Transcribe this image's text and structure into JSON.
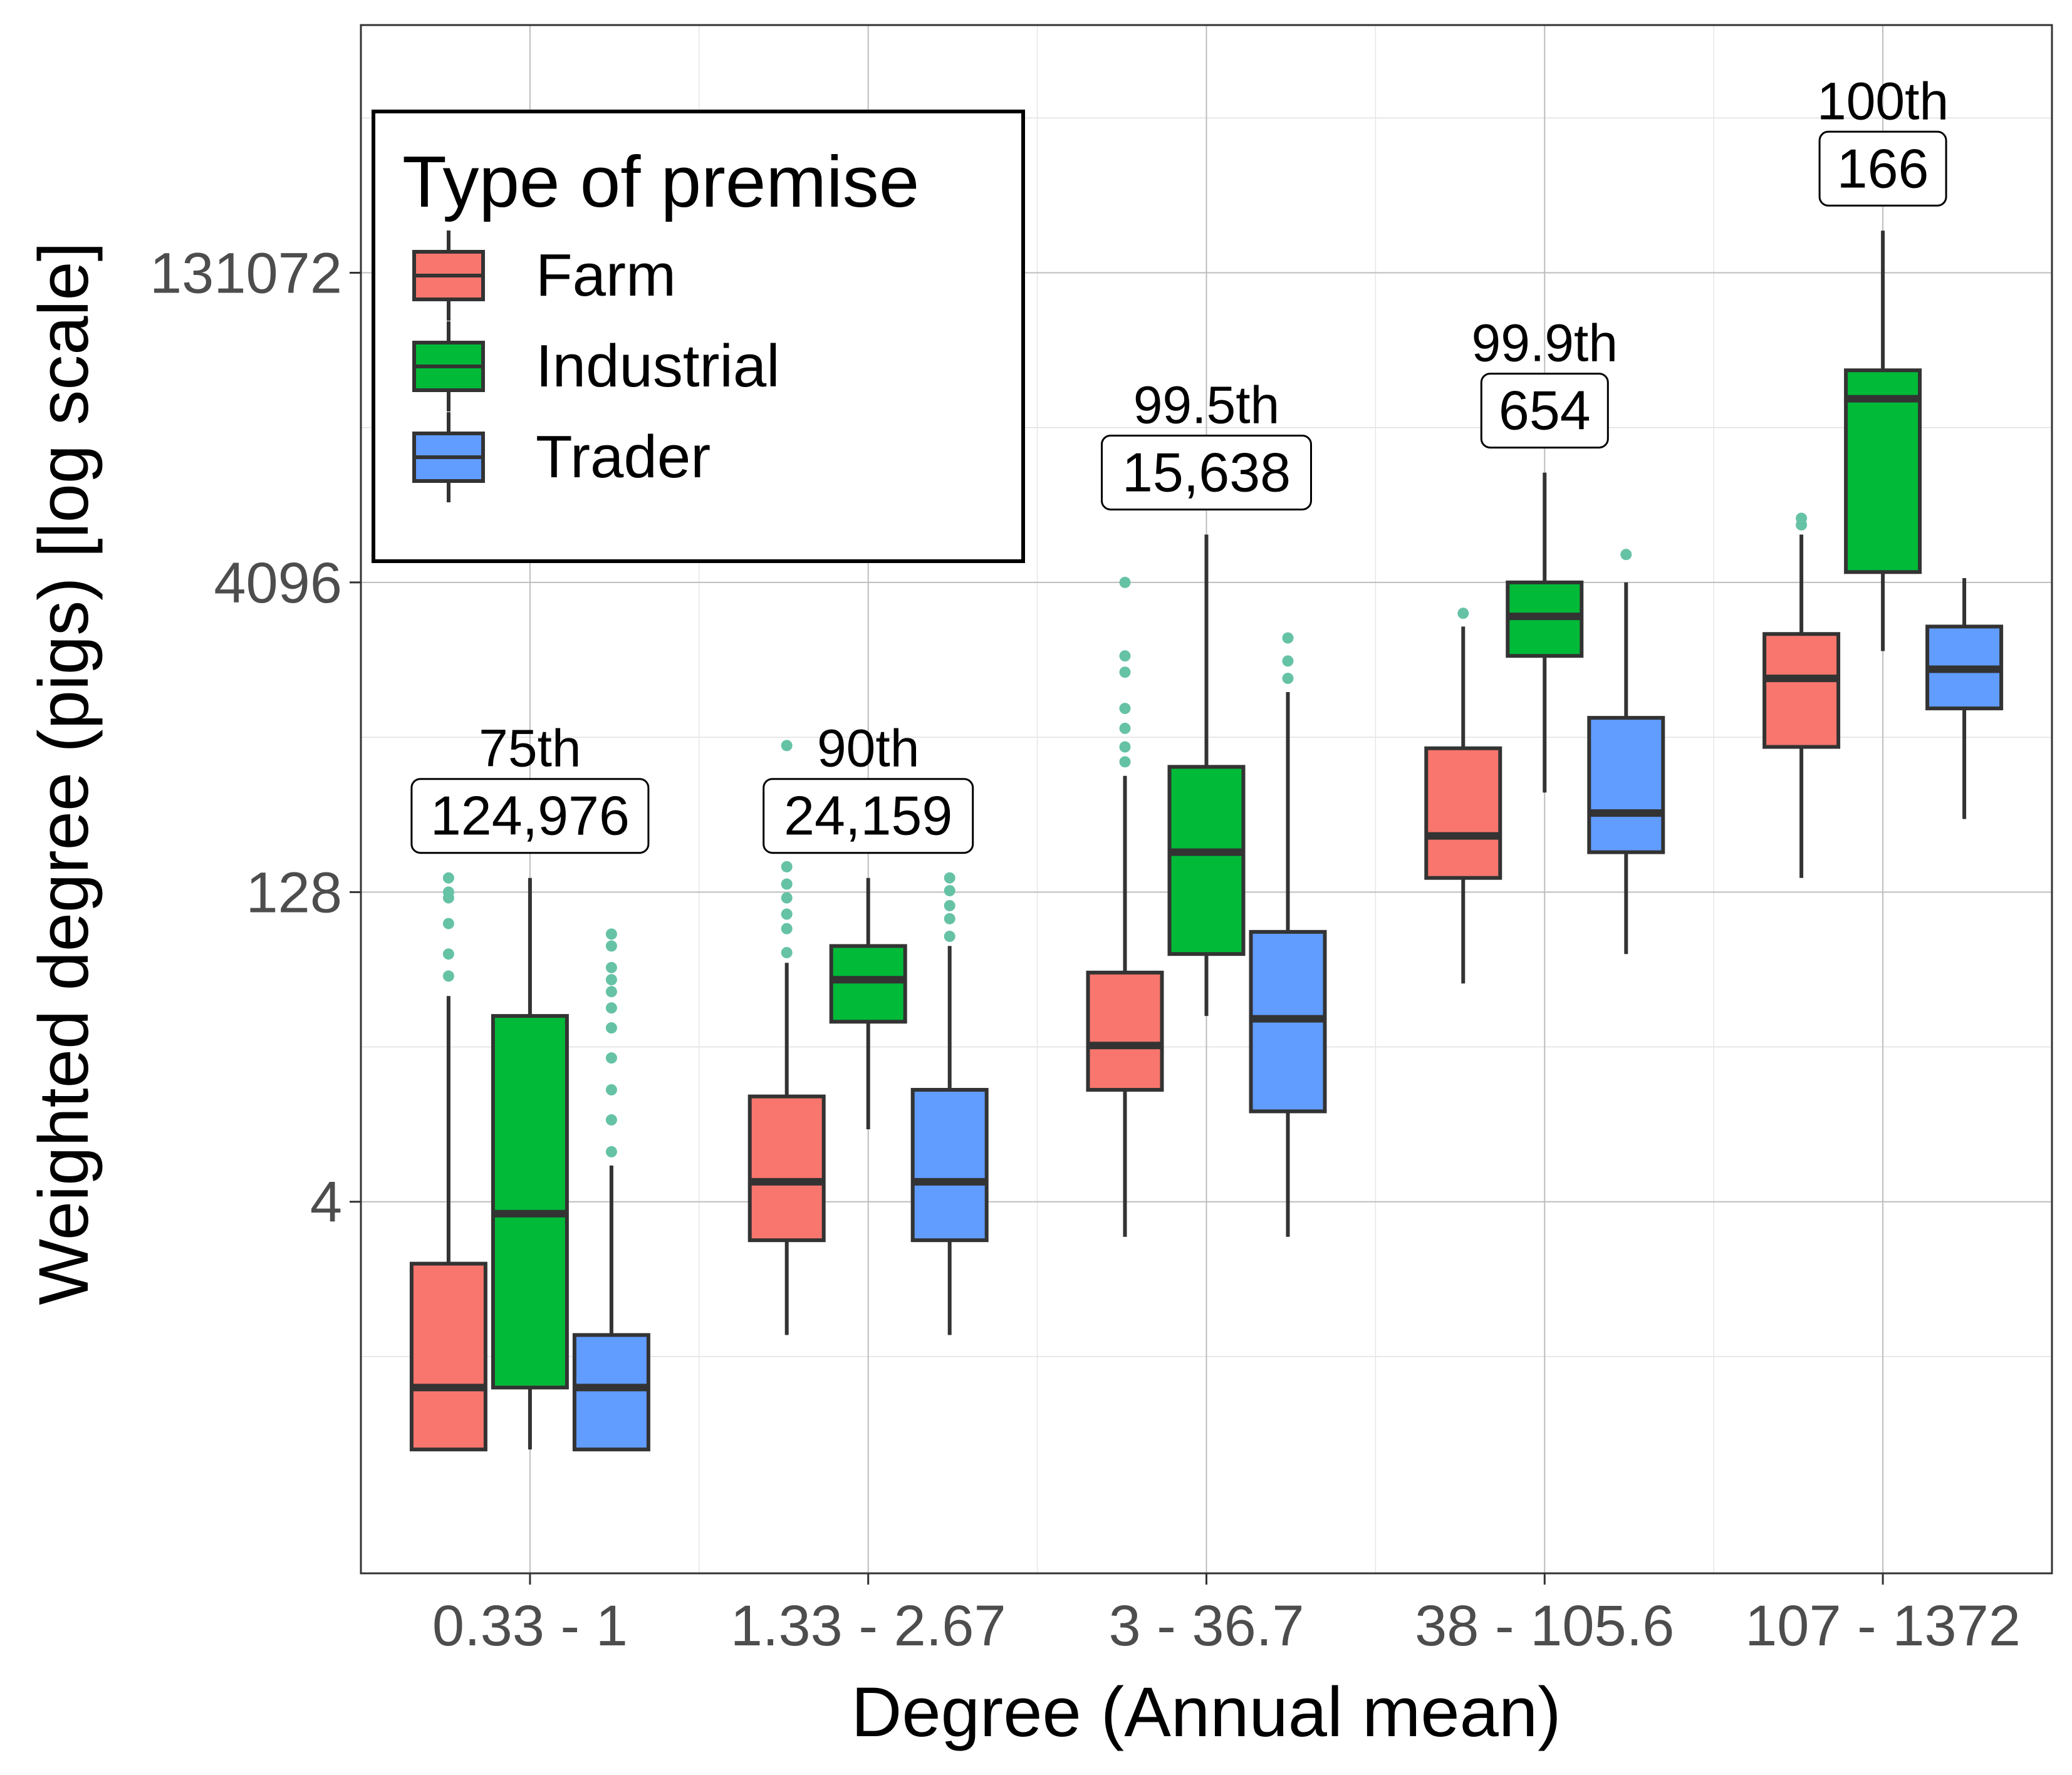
{
  "chart_data": {
    "type": "boxplot",
    "title": "",
    "xlabel": "Degree (Annual mean)",
    "ylabel": "Weighted degree (pigs) [log scale]",
    "y_scale": "log2",
    "ylim": [
      0.0625,
      2097152
    ],
    "y_ticks": [
      4,
      128,
      4096,
      131072
    ],
    "y_tick_labels": [
      "4",
      "128",
      "4096",
      "131072"
    ],
    "grid": true,
    "categories": [
      "0.33 - 1",
      "1.33 - 2.67",
      "3 - 36.7",
      "38 - 105.6",
      "107 - 1372"
    ],
    "percentile_labels": [
      "75th",
      "90th",
      "99.5th",
      "99.9th",
      "100th"
    ],
    "count_labels": [
      "124,976",
      "24,159",
      "15,638",
      "654",
      "166"
    ],
    "legend": {
      "title": "Type of premise",
      "placement": "top-left",
      "entries": [
        "Farm",
        "Industrial",
        "Trader"
      ]
    },
    "colors": {
      "Farm": "#F8766D",
      "Industrial": "#00BA38",
      "Trader": "#619CFF",
      "outlier": "#66C2A5",
      "box_line": "#333333"
    },
    "series": [
      {
        "name": "Farm",
        "boxes": [
          {
            "low": 0.25,
            "q1": 0.25,
            "median": 0.5,
            "q3": 2,
            "high": 0.25,
            "whisker_high": 40,
            "outliers": [
              50,
              64,
              90,
              120,
              128,
              150
            ]
          },
          {
            "low": 0.9,
            "q1": 2.6,
            "median": 5,
            "q3": 13,
            "high": 2.6,
            "whisker_high": 58,
            "outliers": [
              65,
              85,
              100,
              120,
              140,
              170,
              220,
              280,
              340,
              660
            ]
          },
          {
            "low": 2.7,
            "q1": 14,
            "median": 23,
            "q3": 52,
            "high": 14,
            "whisker_high": 470,
            "outliers": [
              550,
              650,
              800,
              1000,
              1500,
              1800,
              4096
            ]
          },
          {
            "low": 46,
            "q1": 150,
            "median": 240,
            "q3": 640,
            "high": 150,
            "whisker_high": 2500,
            "outliers": [
              2900
            ]
          },
          {
            "low": 150,
            "q1": 650,
            "median": 1400,
            "q3": 2300,
            "high": 650,
            "whisker_high": 7000,
            "outliers": [
              7800,
              8400
            ]
          }
        ]
      },
      {
        "name": "Industrial",
        "boxes": [
          {
            "low": 0.25,
            "q1": 0.5,
            "median": 3.5,
            "q3": 32,
            "high": 0.5,
            "whisker_high": 150,
            "outliers": []
          },
          {
            "low": 9,
            "q1": 30,
            "median": 48,
            "q3": 70,
            "high": 30,
            "whisker_high": 150,
            "outliers": [
              400
            ]
          },
          {
            "low": 32,
            "q1": 64,
            "median": 200,
            "q3": 520,
            "high": 64,
            "whisker_high": 7000,
            "outliers": []
          },
          {
            "low": 390,
            "q1": 1800,
            "median": 2800,
            "q3": 4096,
            "high": 1800,
            "whisker_high": 14000,
            "outliers": []
          },
          {
            "low": 1900,
            "q1": 4600,
            "median": 32000,
            "q3": 44000,
            "high": 4600,
            "whisker_high": 210000,
            "outliers": []
          }
        ]
      },
      {
        "name": "Trader",
        "boxes": [
          {
            "low": 0.25,
            "q1": 0.25,
            "median": 0.5,
            "q3": 0.9,
            "high": 0.25,
            "whisker_high": 6,
            "outliers": [
              7,
              10,
              14,
              20,
              28,
              35,
              42,
              48,
              55,
              70,
              80
            ]
          },
          {
            "low": 0.9,
            "q1": 2.6,
            "median": 5,
            "q3": 14,
            "high": 2.6,
            "whisker_high": 70,
            "outliers": [
              78,
              95,
              110,
              130,
              150
            ]
          },
          {
            "low": 2.7,
            "q1": 11,
            "median": 31,
            "q3": 82,
            "high": 11,
            "whisker_high": 1200,
            "outliers": [
              1400,
              1700,
              2200
            ]
          },
          {
            "low": 64,
            "q1": 200,
            "median": 310,
            "q3": 900,
            "high": 200,
            "whisker_high": 4096,
            "outliers": [
              5600
            ]
          },
          {
            "low": 290,
            "q1": 1000,
            "median": 1550,
            "q3": 2500,
            "high": 1000,
            "whisker_high": 4300,
            "outliers": []
          }
        ]
      }
    ]
  }
}
